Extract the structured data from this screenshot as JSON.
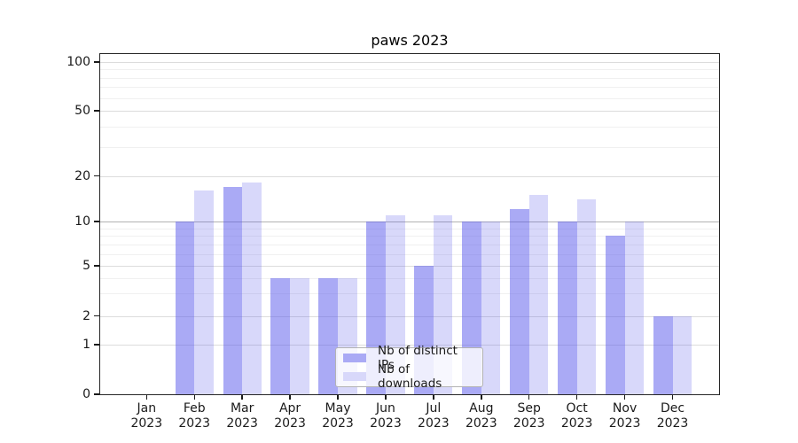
{
  "chart_data": {
    "type": "bar",
    "title": "paws 2023",
    "categories": [
      "Jan 2023",
      "Feb 2023",
      "Mar 2023",
      "Apr 2023",
      "May 2023",
      "Jun 2023",
      "Jul 2023",
      "Aug 2023",
      "Sep 2023",
      "Oct 2023",
      "Nov 2023",
      "Dec 2023"
    ],
    "series": [
      {
        "name": "Nb of distinct IPs",
        "values": [
          0,
          10,
          17,
          4,
          4,
          10,
          5,
          10,
          12,
          10,
          8,
          2
        ]
      },
      {
        "name": "Nb of downloads",
        "values": [
          0,
          16,
          18,
          4,
          4,
          11,
          11,
          10,
          15,
          14,
          10,
          2
        ]
      }
    ],
    "xlabel": "",
    "ylabel": "",
    "y_axis": {
      "scale": "symlog",
      "range": [
        0,
        100
      ],
      "major_ticks": [
        0,
        1,
        2,
        5,
        10,
        20,
        50,
        100
      ],
      "minor_ticks": [
        3,
        4,
        6,
        7,
        8,
        9,
        30,
        40,
        60,
        70,
        80,
        90
      ]
    },
    "grid": true,
    "legend": {
      "location": "lower center",
      "entries": [
        "Nb of distinct IPs",
        "Nb of downloads"
      ]
    }
  },
  "colors": {
    "bar_base": "#5555eb",
    "ip_fill": "rgba(85,85,235,0.5)",
    "dl_fill": "rgba(85,85,235,0.23)",
    "ip_solid": "#aaaaf5",
    "dl_solid": "#d8d8fa",
    "grid_major": "#dcdcdc",
    "grid_minor": "#f0f0f0",
    "grid_emphasis_10": "#b2b2b2",
    "spine": "#262626",
    "text": "#1a1a1a",
    "legend_border": "#b3b3b3"
  }
}
